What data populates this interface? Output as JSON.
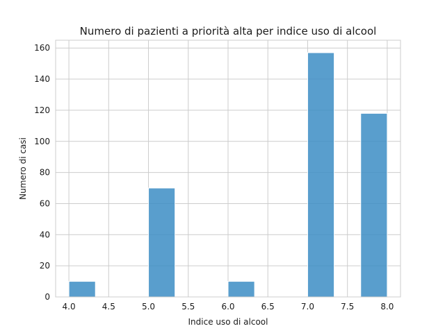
{
  "chart_data": {
    "type": "bar",
    "title": "Numero di pazienti a priorità alta per indice uso di alcool",
    "xlabel": "Indice uso di alcool",
    "ylabel": "Numero di casi",
    "bins": [
      {
        "from": 4.0,
        "to": 4.3333,
        "count": 10
      },
      {
        "from": 5.0,
        "to": 5.3333,
        "count": 70
      },
      {
        "from": 6.0,
        "to": 6.3333,
        "count": 10
      },
      {
        "from": 7.0,
        "to": 7.3333,
        "count": 157
      },
      {
        "from": 7.6667,
        "to": 8.0,
        "count": 118
      }
    ],
    "xlim": [
      3.8333,
      8.1667
    ],
    "ylim": [
      0,
      165
    ],
    "xticks": [
      "4.0",
      "4.5",
      "5.0",
      "5.5",
      "6.0",
      "6.5",
      "7.0",
      "7.5",
      "8.0"
    ],
    "yticks": [
      "0",
      "20",
      "40",
      "60",
      "80",
      "100",
      "120",
      "140",
      "160"
    ],
    "grid": true,
    "bar_color": "#3c8dc4",
    "grid_color": "#cccccc"
  }
}
